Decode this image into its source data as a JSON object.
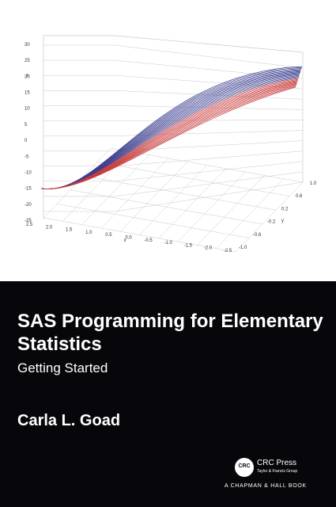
{
  "book": {
    "title": "SAS Programming for Elementary Statistics",
    "subtitle": "Getting Started",
    "author": "Carla L. Goad"
  },
  "publisher": {
    "logo_text": "CRC",
    "name": "CRC Press",
    "group": "Taylor & Francis Group",
    "imprint": "A CHAPMAN & HALL BOOK"
  },
  "figure": {
    "z_axis_title": "z",
    "z_ticks": [
      "30",
      "25",
      "20",
      "15",
      "10",
      "5",
      "0",
      "-5",
      "-10",
      "-15",
      "-20",
      "-25"
    ],
    "x_axis_title": "x",
    "x_ticks": [
      "2.5",
      "2.0",
      "1.5",
      "1.0",
      "0.5",
      "0.0",
      "-0.5",
      "-1.0",
      "-1.5",
      "-2.0",
      "-2.5"
    ],
    "y_axis_title": "y",
    "y_ticks": [
      "1.0",
      "0.6",
      "0.2",
      "-0.2",
      "-0.6",
      "-1.0"
    ],
    "colors": {
      "mesh_upper": "#3b3f8f",
      "mesh_lower": "#c83a3a",
      "grid": "#c9c9c9",
      "background_dark": "#07070b"
    }
  }
}
